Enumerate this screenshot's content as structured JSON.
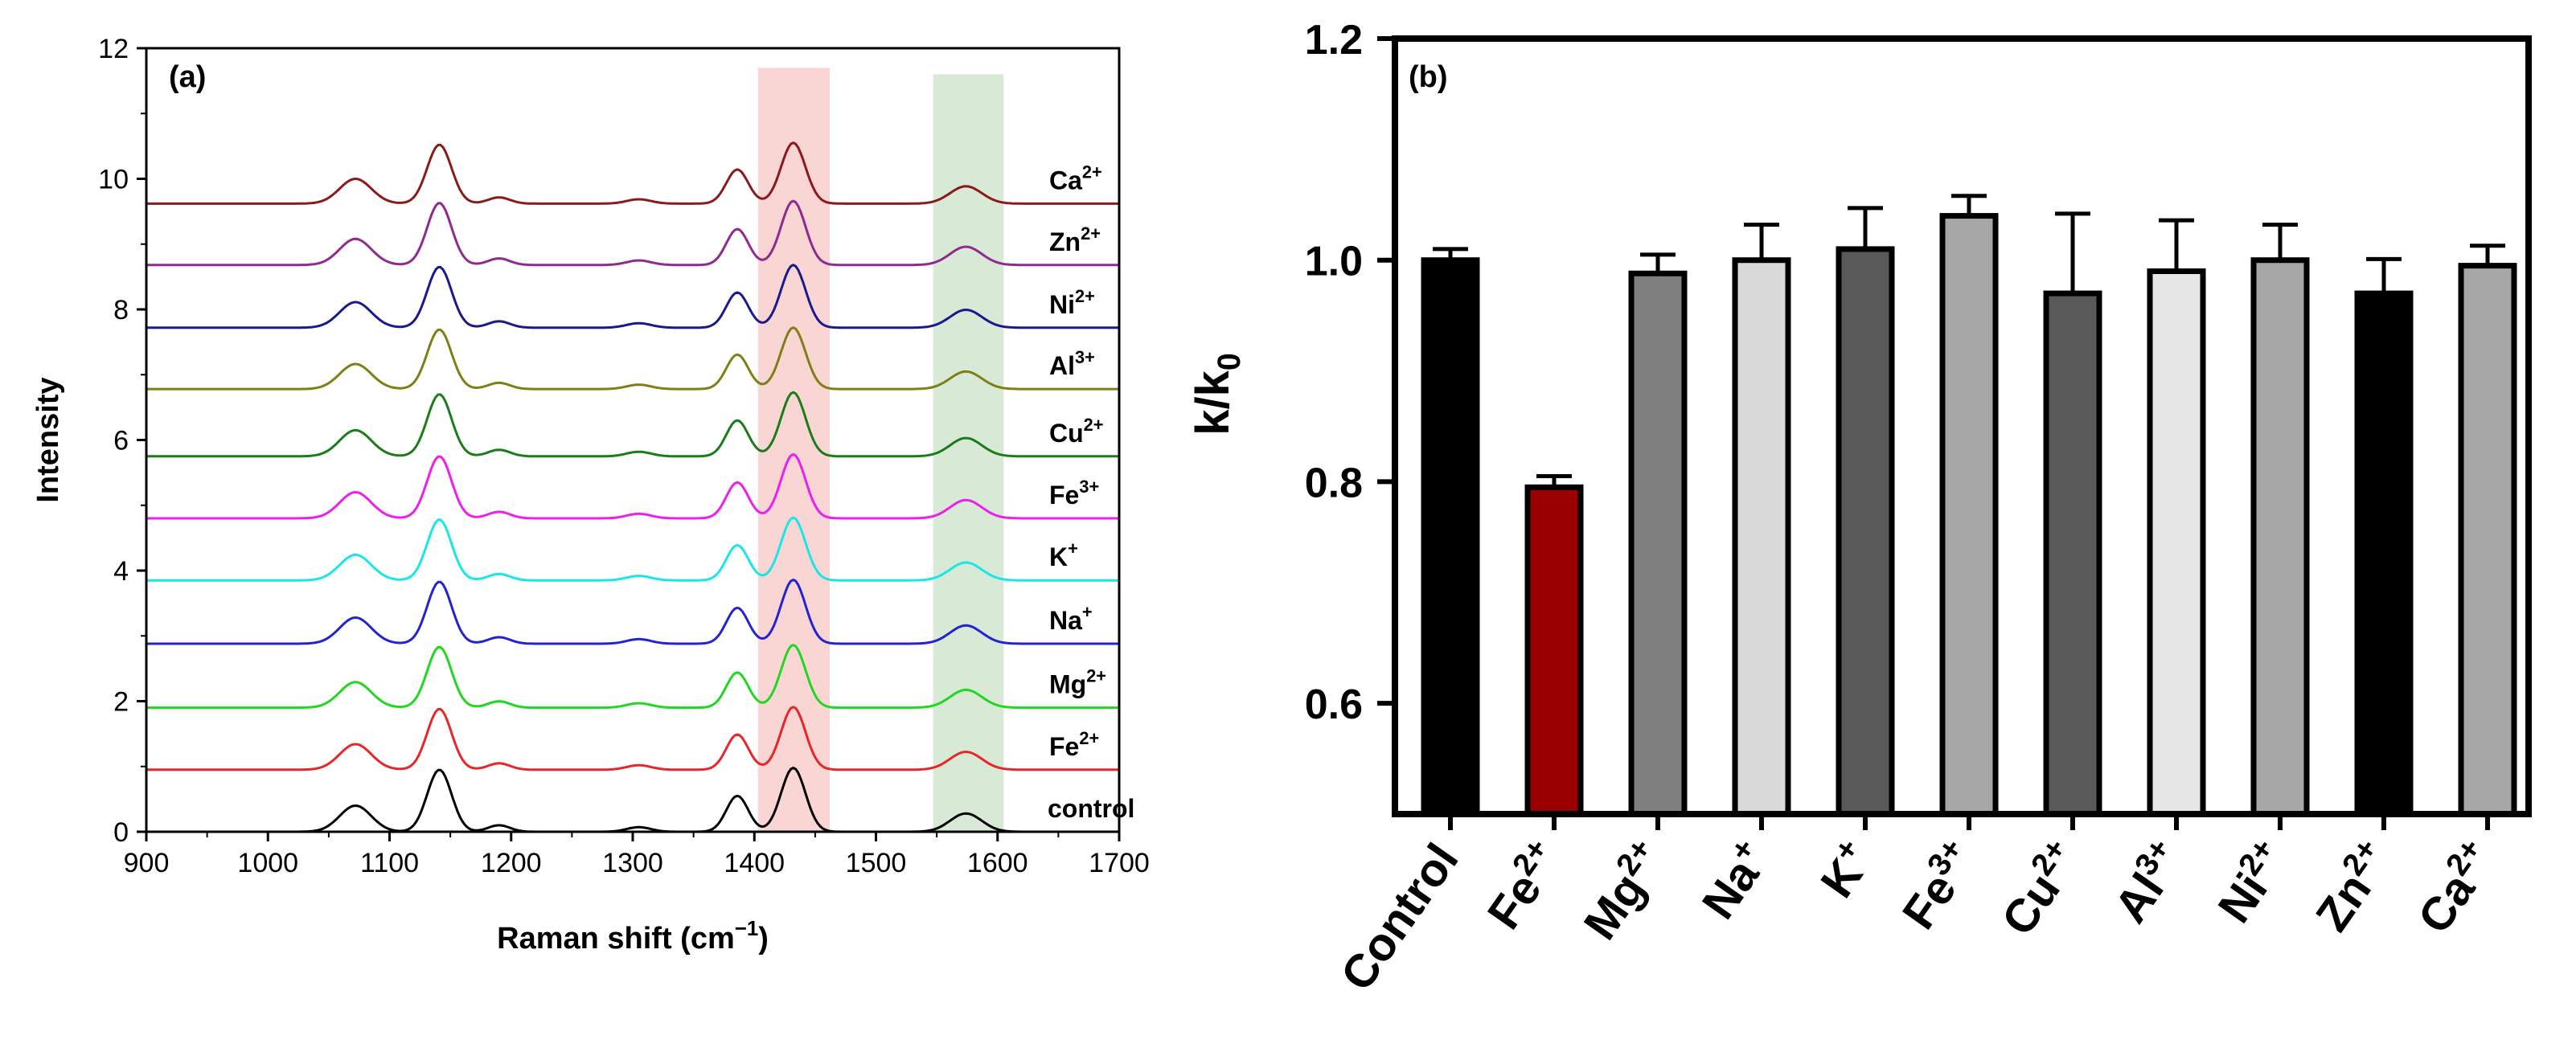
{
  "chart_data": [
    {
      "type": "line",
      "panel_label": "(a)",
      "xlabel": "Raman shift (cm",
      "xlabel_sup": "−1",
      "xlabel_end": ")",
      "ylabel": "Intensity",
      "xlim": [
        900,
        1700
      ],
      "ylim": [
        0,
        12
      ],
      "xticks": [
        "900",
        "1000",
        "1100",
        "1200",
        "1300",
        "1400",
        "1500",
        "1600",
        "1700"
      ],
      "yticks": [
        "0",
        "2",
        "4",
        "6",
        "8",
        "10",
        "12"
      ],
      "highlight_bands": [
        {
          "x0": 1403,
          "x1": 1462,
          "y_top": 11.7,
          "color": "#f9d5d3"
        },
        {
          "x0": 1547,
          "x1": 1605,
          "y_top": 11.6,
          "color": "#d8ead6"
        }
      ],
      "peaks": [
        {
          "center": 1072,
          "width": 13,
          "amp": 0.4
        },
        {
          "center": 1141,
          "width": 10,
          "amp": 0.95
        },
        {
          "center": 1190,
          "width": 9,
          "amp": 0.1
        },
        {
          "center": 1305,
          "width": 10,
          "amp": 0.07
        },
        {
          "center": 1386,
          "width": 9,
          "amp": 0.55
        },
        {
          "center": 1432,
          "width": 10,
          "amp": 0.98
        },
        {
          "center": 1574,
          "width": 13,
          "amp": 0.28
        }
      ],
      "series": [
        {
          "name": "control",
          "ion": "control",
          "charge": "",
          "baseline": 0.0,
          "color": "#000000",
          "scale": 1.0
        },
        {
          "name": "Fe2+",
          "ion": "Fe",
          "charge": "2+",
          "baseline": 0.95,
          "color": "#e8262a",
          "scale": 0.98
        },
        {
          "name": "Mg2+",
          "ion": "Mg",
          "charge": "2+",
          "baseline": 1.9,
          "color": "#22d622",
          "scale": 0.98
        },
        {
          "name": "Na+",
          "ion": "Na",
          "charge": "+",
          "baseline": 2.88,
          "color": "#2323d1",
          "scale": 1.0
        },
        {
          "name": "K+",
          "ion": "K",
          "charge": "+",
          "baseline": 3.85,
          "color": "#19e6e6",
          "scale": 0.98
        },
        {
          "name": "Fe3+",
          "ion": "Fe",
          "charge": "3+",
          "baseline": 4.8,
          "color": "#ec1fec",
          "scale": 1.0
        },
        {
          "name": "Cu2+",
          "ion": "Cu",
          "charge": "2+",
          "baseline": 5.75,
          "color": "#1a7d1a",
          "scale": 1.0
        },
        {
          "name": "Al3+",
          "ion": "Al",
          "charge": "3+",
          "baseline": 6.78,
          "color": "#7f7f16",
          "scale": 0.96
        },
        {
          "name": "Ni2+",
          "ion": "Ni",
          "charge": "2+",
          "baseline": 7.72,
          "color": "#1a1a8f",
          "scale": 0.98
        },
        {
          "name": "Zn2+",
          "ion": "Zn",
          "charge": "2+",
          "baseline": 8.68,
          "color": "#8f2a8f",
          "scale": 1.0
        },
        {
          "name": "Ca2+",
          "ion": "Ca",
          "charge": "2+",
          "baseline": 9.62,
          "color": "#8b1a1a",
          "scale": 0.95
        }
      ]
    },
    {
      "type": "bar",
      "panel_label": "(b)",
      "ylabel": "k/k",
      "ylabel_sub": "0",
      "ylim": [
        0.5,
        1.2
      ],
      "yticks": [
        "0.6",
        "0.8",
        "1.0",
        "1.2"
      ],
      "categories": [
        {
          "ion": "Control",
          "charge": ""
        },
        {
          "ion": "Fe",
          "charge": "2+"
        },
        {
          "ion": "Mg",
          "charge": "2+"
        },
        {
          "ion": "Na",
          "charge": "+"
        },
        {
          "ion": "K",
          "charge": "+"
        },
        {
          "ion": "Fe",
          "charge": "3+"
        },
        {
          "ion": "Cu",
          "charge": "2+"
        },
        {
          "ion": "Al",
          "charge": "3+"
        },
        {
          "ion": "Ni",
          "charge": "2+"
        },
        {
          "ion": "Zn",
          "charge": "2+"
        },
        {
          "ion": "Ca",
          "charge": "2+"
        }
      ],
      "values": [
        1.0,
        0.795,
        0.988,
        1.0,
        1.01,
        1.04,
        0.97,
        0.99,
        1.0,
        0.97,
        0.995
      ],
      "errors": [
        0.01,
        0.01,
        0.017,
        0.032,
        0.037,
        0.018,
        0.072,
        0.046,
        0.032,
        0.031,
        0.018
      ],
      "colors": [
        "#000000",
        "#9b0000",
        "#7f7f7f",
        "#d9d9d9",
        "#595959",
        "#a6a6a6",
        "#595959",
        "#e6e6e6",
        "#a6a6a6",
        "#000000",
        "#a6a6a6"
      ]
    }
  ]
}
